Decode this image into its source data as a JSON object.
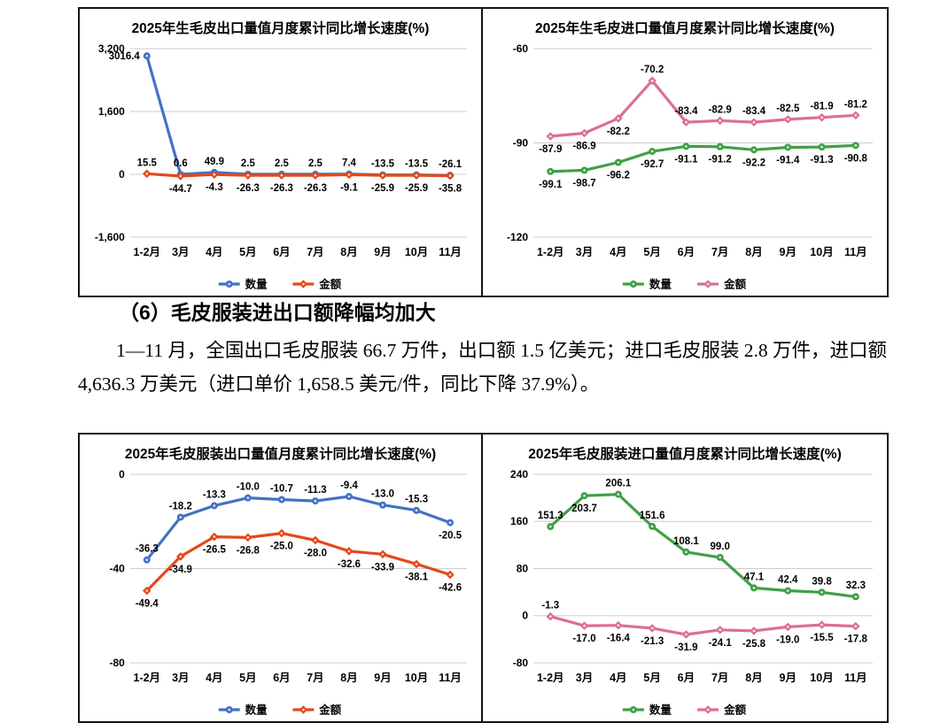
{
  "section": {
    "heading": "（6）毛皮服装进出口额降幅均加大",
    "paragraph": "1—11 月，全国出口毛皮服装 66.7 万件，出口额 1.5 亿美元；进口毛皮服装 2.8 万件，进口额 4,636.3 万美元（进口单价 1,658.5 美元/件，同比下降 37.9%）。"
  },
  "colors": {
    "quantity_blue": "#4472C4",
    "amount_red": "#E3491B",
    "quantity_green": "#3FA047",
    "amount_pink": "#DB6F96",
    "gridline": "#CDCDCD"
  },
  "chart_data": [
    {
      "type": "line",
      "title": "2025年生毛皮出口量值月度累计同比增长速度(%)",
      "categories": [
        "1-2月",
        "3月",
        "4月",
        "5月",
        "6月",
        "7月",
        "8月",
        "9月",
        "10月",
        "11月"
      ],
      "ylim": [
        -1600,
        3200
      ],
      "tick_values": [
        3200,
        1600,
        0,
        -1600
      ],
      "tick_labels": [
        "3,200",
        "1,600",
        "0",
        "-1,600"
      ],
      "grid": true,
      "legend_position": "bottom",
      "series": [
        {
          "name": "数量",
          "color": "#4472C4",
          "marker": "circle",
          "label_side": "above",
          "label_overrides": {
            "0": "left"
          },
          "values": [
            3016.4,
            0.6,
            49.9,
            2.5,
            2.5,
            2.5,
            7.4,
            -13.5,
            -13.5,
            -26.1
          ]
        },
        {
          "name": "金额",
          "color": "#E3491B",
          "marker": "diamond",
          "label_side": "below",
          "label_overrides": {
            "0": "above"
          },
          "values": [
            15.5,
            -44.7,
            -4.3,
            -26.3,
            -26.3,
            -26.3,
            -9.1,
            -25.9,
            -25.9,
            -35.8
          ]
        }
      ]
    },
    {
      "type": "line",
      "title": "2025年生毛皮进口量值月度累计同比增长速度(%)",
      "categories": [
        "1-2月",
        "3月",
        "4月",
        "5月",
        "6月",
        "7月",
        "8月",
        "9月",
        "10月",
        "11月"
      ],
      "ylim": [
        -120,
        -60
      ],
      "tick_values": [
        -60,
        -90,
        -120
      ],
      "tick_labels": [
        "-60",
        "-90",
        "-120"
      ],
      "grid": true,
      "legend_position": "bottom",
      "series": [
        {
          "name": "数量",
          "color": "#3FA047",
          "marker": "circle",
          "label_side": "below",
          "label_overrides": {},
          "values": [
            -99.1,
            -98.7,
            -96.2,
            -92.7,
            -91.1,
            -91.2,
            -92.2,
            -91.4,
            -91.3,
            -90.8
          ]
        },
        {
          "name": "金额",
          "color": "#DB6F96",
          "marker": "diamond",
          "label_side": "above",
          "label_overrides": {
            "0": "below",
            "1": "below",
            "2": "below"
          },
          "values": [
            -87.9,
            -86.9,
            -82.2,
            -70.2,
            -83.4,
            -82.9,
            -83.4,
            -82.5,
            -81.9,
            -81.2
          ]
        }
      ]
    },
    {
      "type": "line",
      "title": "2025年毛皮服装出口量值月度累计同比增长速度(%)",
      "categories": [
        "1-2月",
        "3月",
        "4月",
        "5月",
        "6月",
        "7月",
        "8月",
        "9月",
        "10月",
        "11月"
      ],
      "ylim": [
        -80,
        0
      ],
      "tick_values": [
        0,
        -40,
        -80
      ],
      "tick_labels": [
        "0",
        "-40",
        "-80"
      ],
      "grid": true,
      "legend_position": "bottom",
      "series": [
        {
          "name": "数量",
          "color": "#4472C4",
          "marker": "circle",
          "label_side": "above",
          "label_overrides": {
            "9": "below"
          },
          "values": [
            -36.3,
            -18.2,
            -13.3,
            -10.0,
            -10.7,
            -11.3,
            -9.4,
            -13.0,
            -15.3,
            -20.5
          ]
        },
        {
          "name": "金额",
          "color": "#E3491B",
          "marker": "diamond",
          "label_side": "below",
          "label_overrides": {},
          "values": [
            -49.4,
            -34.9,
            -26.5,
            -26.8,
            -25.0,
            -28.0,
            -32.6,
            -33.9,
            -38.1,
            -42.6
          ]
        }
      ]
    },
    {
      "type": "line",
      "title": "2025年毛皮服装进口量值月度累计同比增长速度(%)",
      "categories": [
        "1-2月",
        "3月",
        "4月",
        "5月",
        "6月",
        "7月",
        "8月",
        "9月",
        "10月",
        "11月"
      ],
      "ylim": [
        -80,
        240
      ],
      "tick_values": [
        240,
        160,
        80,
        0,
        -80
      ],
      "tick_labels": [
        "240",
        "160",
        "80",
        "0",
        "-80"
      ],
      "grid": true,
      "legend_position": "bottom",
      "series": [
        {
          "name": "数量",
          "color": "#3FA047",
          "marker": "circle",
          "label_side": "above",
          "label_overrides": {
            "1": "below"
          },
          "values": [
            151.3,
            203.7,
            206.1,
            151.6,
            108.1,
            99.0,
            47.1,
            42.4,
            39.8,
            32.3
          ]
        },
        {
          "name": "金额",
          "color": "#DB6F96",
          "marker": "diamond",
          "label_side": "below",
          "label_overrides": {
            "0": "above"
          },
          "values": [
            -1.3,
            -17.0,
            -16.4,
            -21.3,
            -31.9,
            -24.1,
            -25.8,
            -19.0,
            -15.5,
            -17.8
          ]
        }
      ]
    }
  ]
}
